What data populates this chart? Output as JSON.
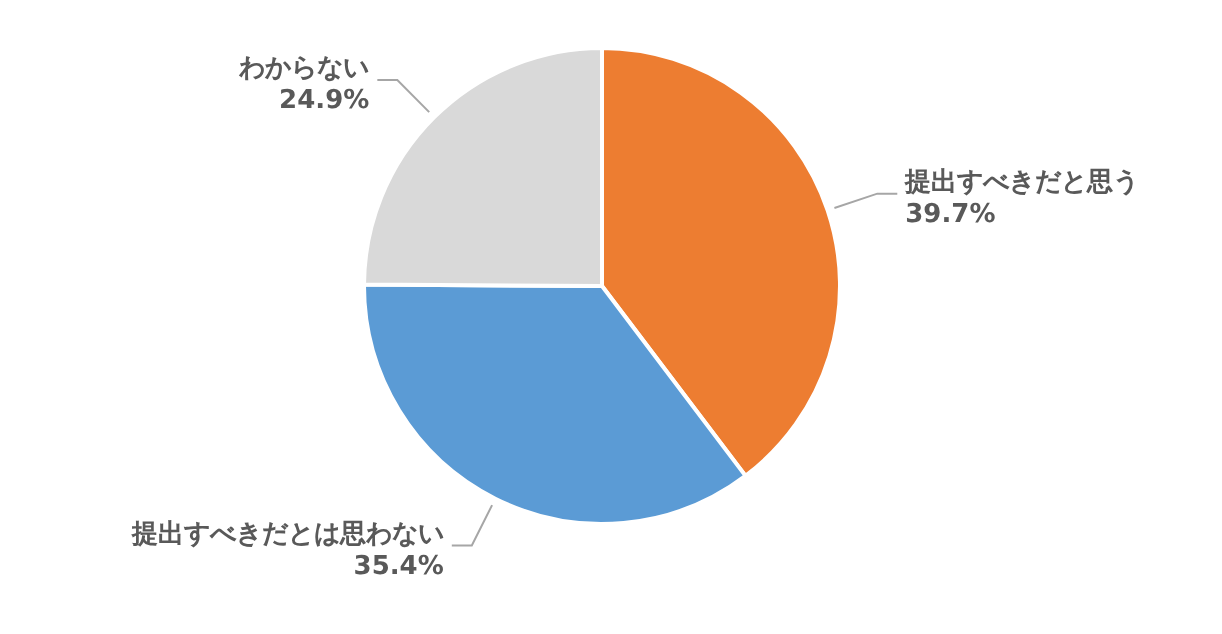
{
  "chart_data": {
    "type": "pie",
    "categories": [
      "提出すべきだと思う",
      "提出すべきだとは思わない",
      "わからない"
    ],
    "values": [
      39.7,
      35.4,
      24.9
    ],
    "value_labels": [
      "39.7%",
      "35.4%",
      "24.9%"
    ],
    "colors": [
      "#ed7d31",
      "#5b9bd5",
      "#d9d9d9"
    ]
  }
}
